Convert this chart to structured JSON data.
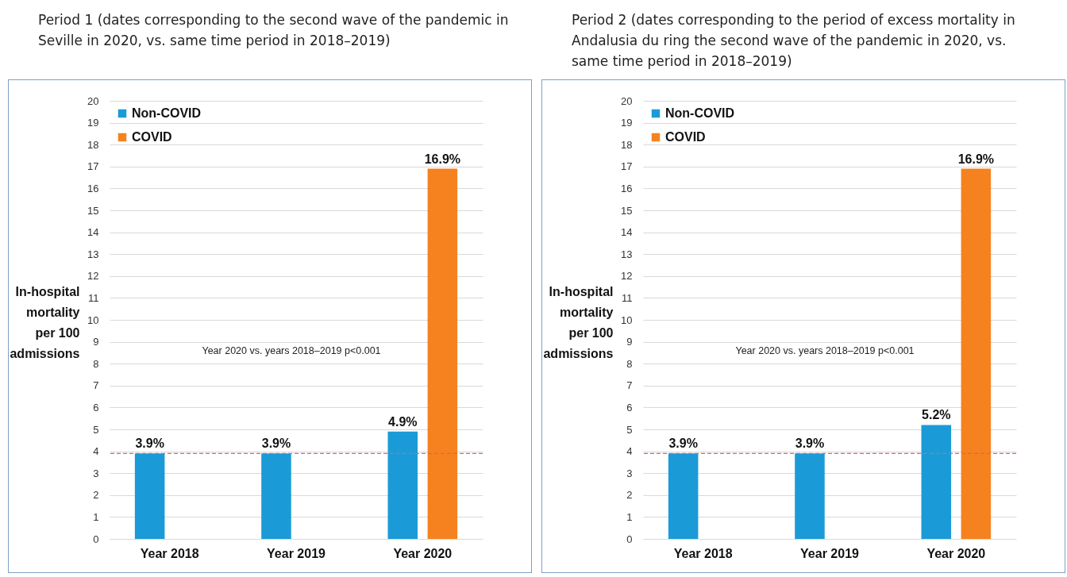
{
  "chart_data": [
    {
      "type": "bar",
      "title": "Period 1 (dates corresponding to the second wave of the pandemic in Seville in 2020, vs. same time period in 2018–2019)",
      "ylabel": "In-hospital mortality per 100 admissions",
      "categories": [
        "Year 2018",
        "Year 2019",
        "Year 2020"
      ],
      "series": [
        {
          "name": "Non-COVID",
          "color": "#1a9bd7",
          "values": [
            3.9,
            3.9,
            4.9
          ],
          "value_labels": [
            "3.9%",
            "3.9%",
            "4.9%"
          ]
        },
        {
          "name": "COVID",
          "color": "#f5821f",
          "values": [
            null,
            null,
            16.9
          ],
          "value_labels": [
            null,
            null,
            "16.9%"
          ]
        }
      ],
      "ylim": [
        0,
        20
      ],
      "yticks": [
        0,
        1,
        2,
        3,
        4,
        5,
        6,
        7,
        8,
        9,
        10,
        11,
        12,
        13,
        14,
        15,
        16,
        17,
        18,
        19,
        20
      ],
      "grid": "y",
      "legend": "top left",
      "ref_lines": [
        {
          "axis": "y",
          "value": 3.9,
          "color": "#e06070",
          "line_style": "dashed"
        }
      ],
      "annotations": [
        "Year 2020 vs. years 2018–2019 p<0.001"
      ]
    },
    {
      "type": "bar",
      "title": "Period 2 (dates corresponding to the period of excess mortality in Andalusia du ring the second wave of the pandemic in 2020, vs. same time period in 2018–2019)",
      "ylabel": "In-hospital mortality per 100 admissions",
      "categories": [
        "Year 2018",
        "Year 2019",
        "Year 2020"
      ],
      "series": [
        {
          "name": "Non-COVID",
          "color": "#1a9bd7",
          "values": [
            3.9,
            3.9,
            5.2
          ],
          "value_labels": [
            "3.9%",
            "3.9%",
            "5.2%"
          ]
        },
        {
          "name": "COVID",
          "color": "#f5821f",
          "values": [
            null,
            null,
            16.9
          ],
          "value_labels": [
            null,
            null,
            "16.9%"
          ]
        }
      ],
      "ylim": [
        0,
        20
      ],
      "yticks": [
        0,
        1,
        2,
        3,
        4,
        5,
        6,
        7,
        8,
        9,
        10,
        11,
        12,
        13,
        14,
        15,
        16,
        17,
        18,
        19,
        20
      ],
      "grid": "y",
      "legend": "top left",
      "ref_lines": [
        {
          "axis": "y",
          "value": 3.9,
          "color": "#e06070",
          "line_style": "dashed"
        }
      ],
      "annotations": [
        "Year 2020 vs. years 2018–2019 p<0.001"
      ]
    }
  ]
}
